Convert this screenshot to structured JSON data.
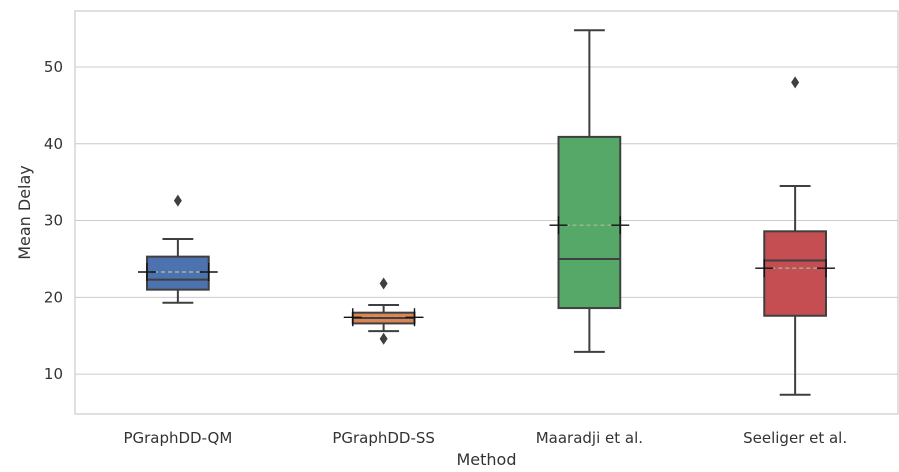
{
  "chart_data": {
    "type": "box",
    "xlabel": "Method",
    "ylabel": "Mean Delay",
    "ylim": [
      4.8,
      57.3
    ],
    "yticks": [
      10,
      20,
      30,
      40,
      50
    ],
    "grid": "horizontal",
    "categories": [
      "PGraphDD-QM",
      "PGraphDD-SS",
      "Maaradji et al.",
      "Seeliger et al."
    ],
    "colors": [
      "#4c72b0",
      "#dd8452",
      "#55a868",
      "#c44e52"
    ],
    "mean_marker": "+",
    "boxes": [
      {
        "category": "PGraphDD-QM",
        "whisker_low": 19.3,
        "q1": 21.0,
        "median": 22.3,
        "q3": 25.3,
        "whisker_high": 27.6,
        "mean": 23.3,
        "outliers": [
          32.6
        ]
      },
      {
        "category": "PGraphDD-SS",
        "whisker_low": 15.6,
        "q1": 16.6,
        "median": 17.3,
        "q3": 18.0,
        "whisker_high": 19.0,
        "mean": 17.4,
        "outliers": [
          21.8,
          14.6
        ]
      },
      {
        "category": "Maaradji et al.",
        "whisker_low": 12.9,
        "q1": 18.6,
        "median": 25.0,
        "q3": 40.9,
        "whisker_high": 54.8,
        "mean": 29.4,
        "outliers": []
      },
      {
        "category": "Seeliger et al.",
        "whisker_low": 7.3,
        "q1": 17.6,
        "median": 24.8,
        "q3": 28.6,
        "whisker_high": 34.5,
        "mean": 23.8,
        "outliers": [
          48.0
        ]
      }
    ]
  }
}
